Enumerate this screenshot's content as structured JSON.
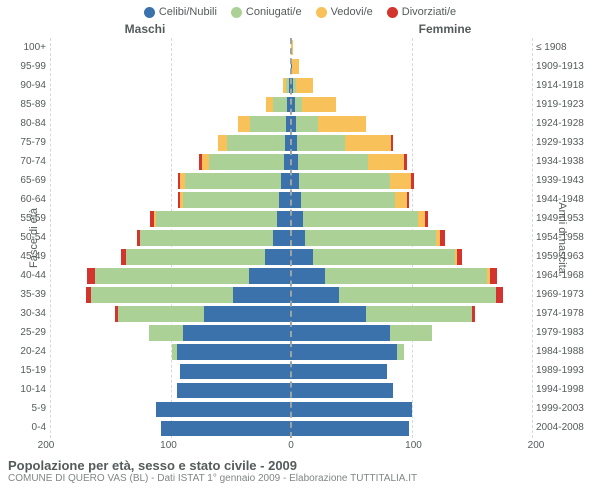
{
  "type": "population-pyramid",
  "legend": [
    {
      "label": "Celibi/Nubili",
      "color": "#3b72ab"
    },
    {
      "label": "Coniugati/e",
      "color": "#abd197"
    },
    {
      "label": "Vedovi/e",
      "color": "#f8c15a"
    },
    {
      "label": "Divorziati/e",
      "color": "#d3342d"
    }
  ],
  "header_male": "Maschi",
  "header_female": "Femmine",
  "axis_left_title": "Fasce di età",
  "axis_right_title": "Anni di nascita",
  "age_labels": [
    "100+",
    "95-99",
    "90-94",
    "85-89",
    "80-84",
    "75-79",
    "70-74",
    "65-69",
    "60-64",
    "55-59",
    "50-54",
    "45-49",
    "40-44",
    "35-39",
    "30-34",
    "25-29",
    "20-24",
    "15-19",
    "10-14",
    "5-9",
    "0-4"
  ],
  "birth_labels": [
    "≤ 1908",
    "1909-1913",
    "1914-1918",
    "1919-1923",
    "1924-1928",
    "1929-1933",
    "1934-1938",
    "1939-1943",
    "1944-1948",
    "1949-1953",
    "1954-1958",
    "1959-1963",
    "1964-1968",
    "1969-1973",
    "1974-1978",
    "1979-1983",
    "1984-1988",
    "1989-1993",
    "1994-1998",
    "1999-2003",
    "2004-2008"
  ],
  "x_max": 200,
  "x_ticks": [
    200,
    100,
    0,
    100,
    200
  ],
  "colors": {
    "single": "#3b72ab",
    "married": "#abd197",
    "widowed": "#f8c15a",
    "divorced": "#d3342d",
    "background": "#ffffff",
    "grid": "#d6d9d9",
    "center": "#9ea3a3",
    "text": "#555b5b"
  },
  "bar_height_ratio": 0.82,
  "label_fontsize": 10,
  "legend_fontsize": 11,
  "male": [
    {
      "single": 0,
      "married": 0,
      "widowed": 0,
      "divorced": 0
    },
    {
      "single": 0,
      "married": 0,
      "widowed": 0,
      "divorced": 0
    },
    {
      "single": 2,
      "married": 2,
      "widowed": 3,
      "divorced": 0
    },
    {
      "single": 3,
      "married": 12,
      "widowed": 6,
      "divorced": 0
    },
    {
      "single": 4,
      "married": 30,
      "widowed": 10,
      "divorced": 0
    },
    {
      "single": 5,
      "married": 48,
      "widowed": 8,
      "divorced": 0
    },
    {
      "single": 6,
      "married": 62,
      "widowed": 6,
      "divorced": 2
    },
    {
      "single": 8,
      "married": 80,
      "widowed": 4,
      "divorced": 2
    },
    {
      "single": 10,
      "married": 80,
      "widowed": 2,
      "divorced": 2
    },
    {
      "single": 12,
      "married": 100,
      "widowed": 2,
      "divorced": 3
    },
    {
      "single": 15,
      "married": 110,
      "widowed": 0,
      "divorced": 3
    },
    {
      "single": 22,
      "married": 115,
      "widowed": 0,
      "divorced": 4
    },
    {
      "single": 35,
      "married": 128,
      "widowed": 0,
      "divorced": 6
    },
    {
      "single": 48,
      "married": 118,
      "widowed": 0,
      "divorced": 4
    },
    {
      "single": 72,
      "married": 72,
      "widowed": 0,
      "divorced": 2
    },
    {
      "single": 90,
      "married": 28,
      "widowed": 0,
      "divorced": 0
    },
    {
      "single": 95,
      "married": 4,
      "widowed": 0,
      "divorced": 0
    },
    {
      "single": 92,
      "married": 0,
      "widowed": 0,
      "divorced": 0
    },
    {
      "single": 95,
      "married": 0,
      "widowed": 0,
      "divorced": 0
    },
    {
      "single": 112,
      "married": 0,
      "widowed": 0,
      "divorced": 0
    },
    {
      "single": 108,
      "married": 0,
      "widowed": 0,
      "divorced": 0
    }
  ],
  "female": [
    {
      "single": 0,
      "married": 0,
      "widowed": 2,
      "divorced": 0
    },
    {
      "single": 1,
      "married": 0,
      "widowed": 6,
      "divorced": 0
    },
    {
      "single": 2,
      "married": 2,
      "widowed": 14,
      "divorced": 0
    },
    {
      "single": 3,
      "married": 6,
      "widowed": 28,
      "divorced": 0
    },
    {
      "single": 4,
      "married": 18,
      "widowed": 40,
      "divorced": 0
    },
    {
      "single": 5,
      "married": 40,
      "widowed": 38,
      "divorced": 2
    },
    {
      "single": 6,
      "married": 58,
      "widowed": 30,
      "divorced": 2
    },
    {
      "single": 7,
      "married": 75,
      "widowed": 18,
      "divorced": 2
    },
    {
      "single": 8,
      "married": 78,
      "widowed": 10,
      "divorced": 2
    },
    {
      "single": 10,
      "married": 95,
      "widowed": 6,
      "divorced": 3
    },
    {
      "single": 12,
      "married": 108,
      "widowed": 4,
      "divorced": 4
    },
    {
      "single": 18,
      "married": 118,
      "widowed": 2,
      "divorced": 4
    },
    {
      "single": 28,
      "married": 135,
      "widowed": 2,
      "divorced": 6
    },
    {
      "single": 40,
      "married": 130,
      "widowed": 0,
      "divorced": 6
    },
    {
      "single": 62,
      "married": 88,
      "widowed": 0,
      "divorced": 3
    },
    {
      "single": 82,
      "married": 35,
      "widowed": 0,
      "divorced": 0
    },
    {
      "single": 88,
      "married": 6,
      "widowed": 0,
      "divorced": 0
    },
    {
      "single": 80,
      "married": 0,
      "widowed": 0,
      "divorced": 0
    },
    {
      "single": 85,
      "married": 0,
      "widowed": 0,
      "divorced": 0
    },
    {
      "single": 100,
      "married": 0,
      "widowed": 0,
      "divorced": 0
    },
    {
      "single": 98,
      "married": 0,
      "widowed": 0,
      "divorced": 0
    }
  ],
  "footer_title": "Popolazione per età, sesso e stato civile - 2009",
  "footer_sub": "COMUNE DI QUERO VAS (BL) - Dati ISTAT 1° gennaio 2009 - Elaborazione TUTTITALIA.IT"
}
